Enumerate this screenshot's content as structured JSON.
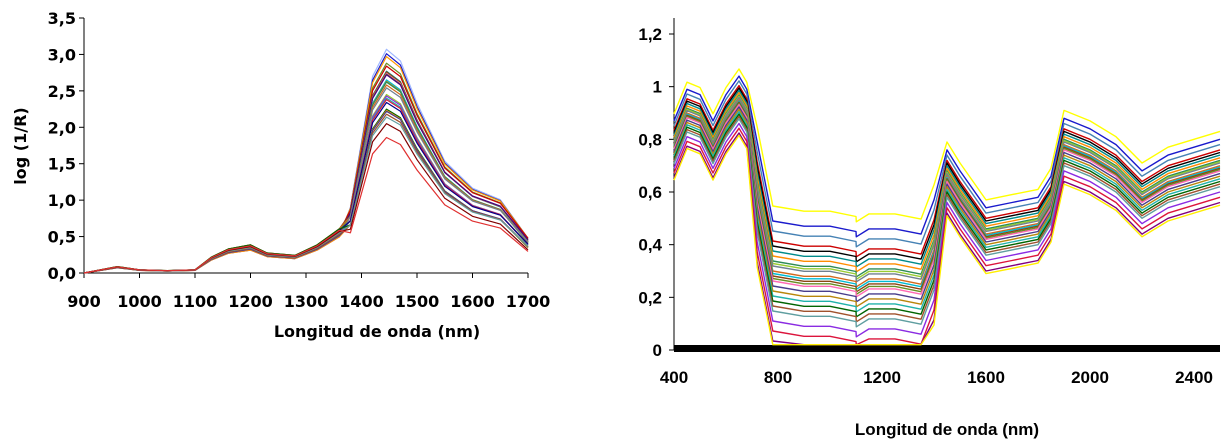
{
  "chart_data": [
    {
      "type": "line",
      "title": "",
      "xlabel": "Longitud de onda (nm)",
      "ylabel": "log (1/R)",
      "xlim": [
        900,
        1700
      ],
      "ylim": [
        0,
        3.5
      ],
      "x_ticks": [
        "900",
        "1000",
        "1100",
        "1200",
        "1300",
        "1400",
        "1500",
        "1600",
        "1700"
      ],
      "y_ticks": [
        "0,0",
        "0,5",
        "1,0",
        "1,5",
        "2,0",
        "2,5",
        "3,0",
        "3,5"
      ],
      "grid": false,
      "legend": "none",
      "x": [
        900,
        960,
        1000,
        1050,
        1100,
        1130,
        1160,
        1200,
        1230,
        1280,
        1320,
        1360,
        1380,
        1400,
        1420,
        1445,
        1470,
        1500,
        1550,
        1600,
        1650,
        1700
      ],
      "curve_shape": [
        0.0,
        0.08,
        0.04,
        0.03,
        0.04,
        0.2,
        0.3,
        0.35,
        0.25,
        0.22,
        0.35,
        0.55,
        0.85,
        1.7,
        2.55,
        2.9,
        2.75,
        2.2,
        1.45,
        1.1,
        0.95,
        0.45
      ],
      "peak_values": [
        3.07,
        3.0,
        2.95,
        2.85,
        2.8,
        2.77,
        2.75,
        2.72,
        2.7,
        2.68,
        2.65,
        2.62,
        2.6,
        2.55,
        2.5,
        2.45,
        2.42,
        2.38,
        2.35,
        2.3,
        2.25,
        2.22,
        2.2,
        2.15,
        2.1,
        2.05,
        1.85
      ],
      "series_colors": [
        "#9fb8ff",
        "#1a1acc",
        "#ff9a00",
        "#6b8e23",
        "#cc0000",
        "#008b8b",
        "#8b4513",
        "#ff69b4",
        "#556b2f",
        "#4b0082",
        "#00bcd4",
        "#b8860b",
        "#2e8b57",
        "#d2691e",
        "#708090",
        "#9acd32",
        "#8a2be2",
        "#20b2aa",
        "#dc143c",
        "#00008b",
        "#006400",
        "#ff8c00",
        "#483d8b",
        "#a0522d",
        "#5f9ea0",
        "#800000",
        "#e03030"
      ]
    },
    {
      "type": "line",
      "title": "",
      "xlabel": "Longitud de onda  (nm)",
      "ylabel": "",
      "xlim": [
        400,
        2500
      ],
      "ylim": [
        0,
        1.2
      ],
      "x_ticks": [
        "400",
        "800",
        "1200",
        "1600",
        "2000",
        "2400"
      ],
      "y_ticks": [
        "0",
        "0,2",
        "0,4",
        "0,6",
        "0,8",
        "1",
        "1,2"
      ],
      "grid": false,
      "legend": "none",
      "x": [
        400,
        450,
        500,
        550,
        600,
        650,
        680,
        720,
        780,
        900,
        1000,
        1100,
        1101,
        1150,
        1250,
        1350,
        1400,
        1450,
        1500,
        1600,
        1700,
        1800,
        1850,
        1900,
        1950,
        2000,
        2100,
        2200,
        2300,
        2500
      ],
      "curve_shape": [
        0.78,
        0.9,
        0.88,
        0.78,
        0.88,
        0.95,
        0.9,
        0.6,
        0.3,
        0.28,
        0.28,
        0.26,
        0.24,
        0.27,
        0.27,
        0.25,
        0.38,
        0.66,
        0.58,
        0.44,
        0.46,
        0.48,
        0.56,
        0.78,
        0.76,
        0.74,
        0.68,
        0.58,
        0.64,
        0.7
      ],
      "offsets": [
        0.13,
        0.1,
        0.08,
        0.06,
        0.05,
        0.04,
        0.03,
        0.02,
        0.015,
        0.01,
        0.0,
        -0.005,
        -0.01,
        -0.015,
        -0.02,
        -0.03,
        -0.04,
        -0.05,
        -0.06,
        -0.07,
        -0.08,
        -0.1,
        -0.12,
        -0.14,
        -0.15
      ],
      "series_colors": [
        "#ffff00",
        "#1a1acc",
        "#4682b4",
        "#cc0000",
        "#000000",
        "#008b8b",
        "#ff8c00",
        "#2e8b57",
        "#9acd32",
        "#708090",
        "#d2691e",
        "#00bcd4",
        "#8b4513",
        "#6b8e23",
        "#ff69b4",
        "#483d8b",
        "#b8860b",
        "#20b2aa",
        "#006400",
        "#a0522d",
        "#5f9ea0",
        "#8a2be2",
        "#dc143c",
        "#800080",
        "#ffee00"
      ]
    }
  ]
}
